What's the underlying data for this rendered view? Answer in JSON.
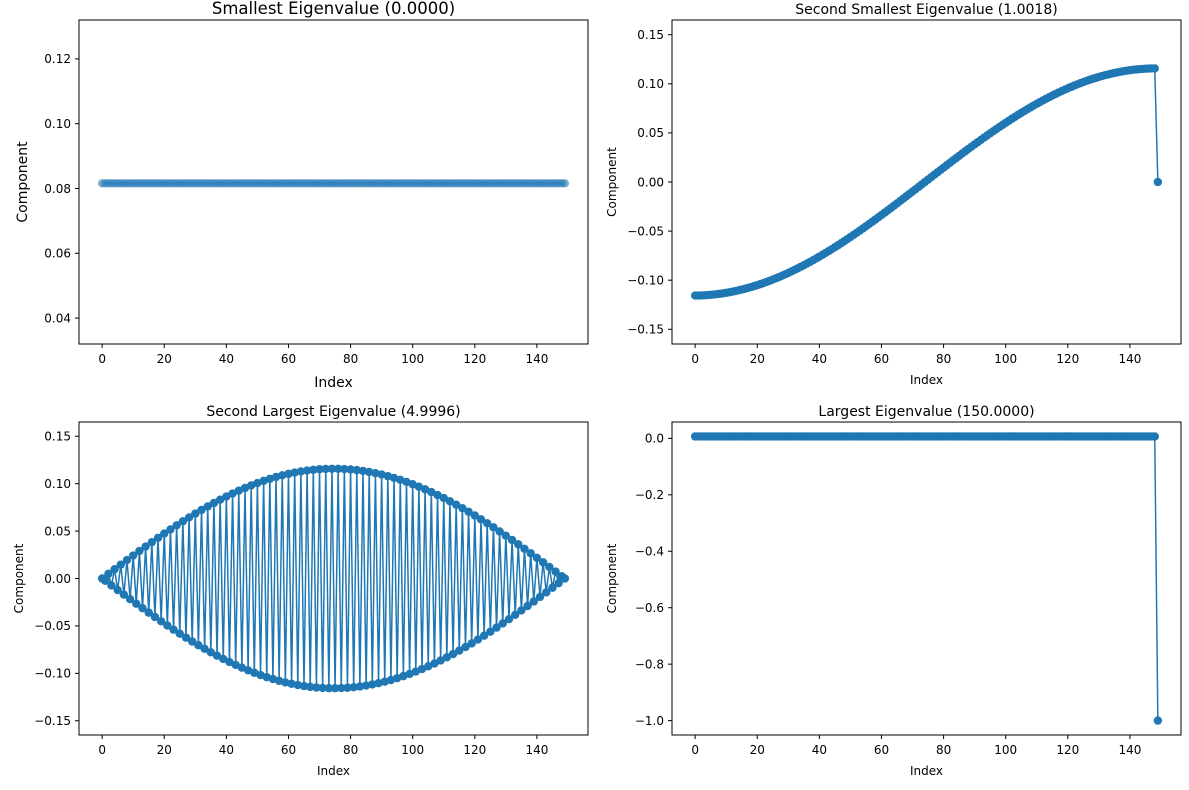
{
  "chart_data": [
    {
      "type": "line",
      "title": "Smallest Eigenvalue (0.0000)",
      "xlabel": "Index",
      "ylabel": "Component",
      "xlim": [
        -7.45,
        156.45
      ],
      "ylim": [
        0.032,
        0.132
      ],
      "xticks": [
        0,
        20,
        40,
        60,
        80,
        100,
        120,
        140
      ],
      "yticks": [
        0.04,
        0.06,
        0.08,
        0.1,
        0.12
      ],
      "ytick_decimals": 2,
      "series_kind": "constant",
      "n_points": 150,
      "value": 0.0816,
      "line": false,
      "marker_alpha": 0.6,
      "color": "#1f77b4",
      "large_fonts": true
    },
    {
      "type": "line",
      "title": "Second Smallest Eigenvalue (1.0018)",
      "xlabel": "Index",
      "ylabel": "Component",
      "xlim": [
        -7.45,
        156.45
      ],
      "ylim": [
        -0.165,
        0.165
      ],
      "xticks": [
        0,
        20,
        40,
        60,
        80,
        100,
        120,
        140
      ],
      "yticks": [
        -0.15,
        -0.1,
        -0.05,
        0.0,
        0.05,
        0.1,
        0.15
      ],
      "ytick_decimals": 2,
      "series_kind": "cosine-with-tail",
      "n_points": 149,
      "amplitude": 0.1157,
      "tail": {
        "x": 149,
        "y": 0.0
      },
      "line": true,
      "marker_alpha": 1,
      "color": "#1f77b4",
      "large_fonts": false
    },
    {
      "type": "line",
      "title": "Second Largest Eigenvalue (4.9996)",
      "xlabel": "Index",
      "ylabel": "Component",
      "xlim": [
        -7.45,
        156.45
      ],
      "ylim": [
        -0.165,
        0.165
      ],
      "xticks": [
        0,
        20,
        40,
        60,
        80,
        100,
        120,
        140
      ],
      "yticks": [
        -0.15,
        -0.1,
        -0.05,
        0.0,
        0.05,
        0.1,
        0.15
      ],
      "ytick_decimals": 2,
      "series_kind": "alternating-sine",
      "n_points": 150,
      "amplitude": 0.1157,
      "line": true,
      "marker_alpha": 1,
      "color": "#1f77b4",
      "large_fonts": false
    },
    {
      "type": "line",
      "title": "Largest Eigenvalue (150.0000)",
      "xlabel": "Index",
      "ylabel": "Component",
      "xlim": [
        -7.45,
        156.45
      ],
      "ylim": [
        -1.051,
        0.058
      ],
      "xticks": [
        0,
        20,
        40,
        60,
        80,
        100,
        120,
        140
      ],
      "yticks": [
        -1.0,
        -0.8,
        -0.6,
        -0.4,
        -0.2,
        0.0
      ],
      "ytick_decimals": 1,
      "series_kind": "constant-with-tail",
      "n_points": 149,
      "value": 0.0067,
      "tail": {
        "x": 149,
        "y": -1.0
      },
      "line": true,
      "marker_alpha": 1,
      "color": "#1f77b4",
      "large_fonts": false
    }
  ]
}
